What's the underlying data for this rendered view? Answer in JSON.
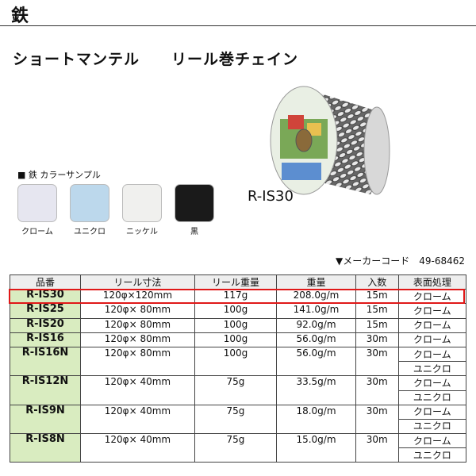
{
  "header": {
    "title": "鉄"
  },
  "product": {
    "title": "ショートマンテル　　リール巻チェイン",
    "photo_caption": "R-IS30"
  },
  "color_samples": {
    "label": "■ 鉄 カラーサンプル",
    "swatches": [
      {
        "name": "クローム",
        "color": "#e6e6f0"
      },
      {
        "name": "ユニクロ",
        "color": "#bcd8ec"
      },
      {
        "name": "ニッケル",
        "color": "#f0f0ee"
      },
      {
        "name": "黒",
        "color": "#1a1a1a"
      }
    ]
  },
  "maker_code": "▼メーカーコード　49-68462",
  "table": {
    "headers": [
      "品番",
      "リール寸法",
      "リール重量",
      "重量",
      "入数",
      "表面処理"
    ],
    "rows": [
      {
        "model": "R-IS30",
        "size": "120φ×120mm",
        "reel_weight": "117g",
        "weight": "208.0g/m",
        "quantity": "15m",
        "finishes": [
          "クローム"
        ]
      },
      {
        "model": "R-IS25",
        "size": "120φ× 80mm",
        "reel_weight": "100g",
        "weight": "141.0g/m",
        "quantity": "15m",
        "finishes": [
          "クローム"
        ]
      },
      {
        "model": "R-IS20",
        "size": "120φ× 80mm",
        "reel_weight": "100g",
        "weight": "92.0g/m",
        "quantity": "15m",
        "finishes": [
          "クローム"
        ]
      },
      {
        "model": "R-IS16",
        "size": "120φ× 80mm",
        "reel_weight": "100g",
        "weight": "56.0g/m",
        "quantity": "30m",
        "finishes": [
          "クローム"
        ]
      },
      {
        "model": "R-IS16N",
        "size": "120φ× 80mm",
        "reel_weight": "100g",
        "weight": "56.0g/m",
        "quantity": "30m",
        "finishes": [
          "クローム",
          "ユニクロ"
        ]
      },
      {
        "model": "R-IS12N",
        "size": "120φ× 40mm",
        "reel_weight": "75g",
        "weight": "33.5g/m",
        "quantity": "30m",
        "finishes": [
          "クローム",
          "ユニクロ"
        ]
      },
      {
        "model": "R-IS9N",
        "size": "120φ× 40mm",
        "reel_weight": "75g",
        "weight": "18.0g/m",
        "quantity": "30m",
        "finishes": [
          "クローム",
          "ユニクロ"
        ]
      },
      {
        "model": "R-IS8N",
        "size": "120φ× 40mm",
        "reel_weight": "75g",
        "weight": "15.0g/m",
        "quantity": "30m",
        "finishes": [
          "クローム",
          "ユニクロ"
        ]
      }
    ]
  }
}
